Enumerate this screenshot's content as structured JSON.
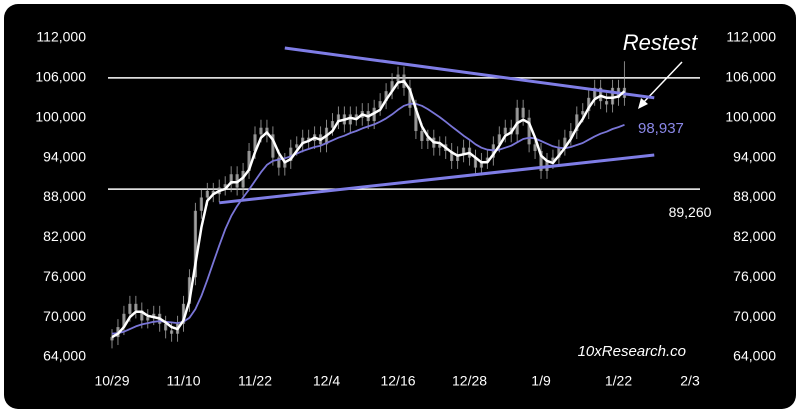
{
  "chart_data": {
    "type": "candlestick",
    "categories": [
      "10/29",
      null,
      null,
      null,
      null,
      null,
      null,
      null,
      null,
      null,
      null,
      null,
      "11/10",
      null,
      null,
      null,
      null,
      null,
      null,
      null,
      null,
      null,
      null,
      null,
      "11/22",
      null,
      null,
      null,
      null,
      null,
      null,
      null,
      null,
      null,
      null,
      null,
      "12/4",
      null,
      null,
      null,
      null,
      null,
      null,
      null,
      null,
      null,
      null,
      null,
      "12/16",
      null,
      null,
      null,
      null,
      null,
      null,
      null,
      null,
      null,
      null,
      null,
      "12/28",
      null,
      null,
      null,
      null,
      null,
      null,
      null,
      null,
      null,
      null,
      null,
      "1/9",
      null,
      null,
      null,
      null,
      null,
      null,
      null,
      null,
      null,
      null,
      null,
      null,
      "1/22",
      null,
      null,
      null,
      null,
      null,
      null,
      null,
      null,
      null,
      null,
      null,
      "2/3"
    ],
    "candles": {
      "color": "#b0b0b0",
      "open": [
        66500,
        67000,
        68500,
        70500,
        72000,
        71000,
        69500,
        70000,
        70500,
        69000,
        68000,
        67500,
        69000,
        72000,
        76000,
        86000,
        88000,
        89000,
        88500,
        89500,
        90000,
        91500,
        89500,
        92000,
        95000,
        97500,
        98500,
        97500,
        94000,
        92500,
        93500,
        95500,
        96000,
        97000,
        96500,
        97500,
        96000,
        98500,
        99500,
        100500,
        99000,
        100500,
        100000,
        101000,
        99500,
        101500,
        102500,
        104000,
        105500,
        106500,
        104500,
        101500,
        98000,
        96500,
        97000,
        95500,
        96000,
        95000,
        93500,
        94500,
        95500,
        94000,
        92500,
        93500,
        94000,
        96000,
        97500,
        98500,
        97500,
        101500,
        100000,
        96000,
        95000,
        92000,
        93500,
        94000,
        95500,
        97000,
        98000,
        100500,
        101000,
        103000,
        104500,
        102500,
        102000,
        104500,
        103000,
        null,
        null,
        null,
        null,
        null,
        null,
        null,
        null,
        null,
        null,
        null
      ],
      "high": [
        68200,
        69700,
        71700,
        73200,
        73200,
        72200,
        71200,
        71700,
        71700,
        70200,
        69200,
        70200,
        73200,
        77200,
        87200,
        89200,
        90200,
        90200,
        90700,
        91200,
        92700,
        92700,
        93200,
        96200,
        98700,
        99700,
        99700,
        98700,
        95200,
        94700,
        96700,
        97200,
        98200,
        98200,
        98700,
        98700,
        99700,
        100700,
        101700,
        101700,
        101700,
        101700,
        102200,
        102200,
        102700,
        103700,
        105200,
        106700,
        107700,
        107700,
        105700,
        102700,
        99200,
        98200,
        98200,
        97200,
        97200,
        96200,
        95700,
        96700,
        96700,
        95200,
        94700,
        95200,
        97200,
        98700,
        99700,
        99700,
        102700,
        102700,
        101200,
        97200,
        96200,
        94700,
        95200,
        96700,
        98200,
        99200,
        101700,
        102200,
        104200,
        105700,
        105700,
        103700,
        105700,
        105700,
        108500,
        null,
        null,
        null,
        null,
        null,
        null,
        null,
        null,
        null,
        null,
        null
      ],
      "low": [
        65300,
        65800,
        67300,
        69300,
        69800,
        68300,
        68300,
        68800,
        67800,
        66800,
        66300,
        66300,
        67800,
        70800,
        74800,
        84800,
        86800,
        87300,
        87300,
        88300,
        88800,
        88300,
        88300,
        90800,
        93800,
        96300,
        96300,
        92800,
        91300,
        91300,
        92300,
        94300,
        94800,
        95300,
        95300,
        94800,
        94800,
        97300,
        98300,
        97800,
        97800,
        98800,
        98800,
        98300,
        98300,
        100300,
        101300,
        102800,
        104300,
        103300,
        100300,
        96800,
        95300,
        95300,
        94300,
        94300,
        93800,
        92300,
        92300,
        93300,
        92800,
        91300,
        91300,
        92300,
        92800,
        94800,
        96300,
        96300,
        96300,
        98800,
        94800,
        93800,
        90800,
        90800,
        92300,
        92800,
        94300,
        95800,
        96800,
        99300,
        99800,
        101800,
        101300,
        100800,
        100800,
        101800,
        101800,
        null,
        null,
        null,
        null,
        null,
        null,
        null,
        null,
        null,
        null,
        null
      ],
      "close": [
        67000,
        68500,
        70500,
        72000,
        71000,
        69500,
        70000,
        70500,
        69000,
        68000,
        67500,
        69000,
        72000,
        76000,
        86000,
        88000,
        89000,
        88500,
        89500,
        90000,
        91500,
        89500,
        92000,
        95000,
        97500,
        98500,
        97500,
        94000,
        92500,
        93500,
        95500,
        96000,
        97000,
        96500,
        97500,
        96000,
        98500,
        99500,
        100500,
        99000,
        100500,
        100000,
        101000,
        99500,
        101500,
        102500,
        104000,
        105500,
        106500,
        104500,
        101500,
        98000,
        96500,
        97000,
        95500,
        96000,
        95000,
        93500,
        94500,
        95500,
        94000,
        92500,
        93500,
        94000,
        96000,
        97500,
        98500,
        97500,
        101500,
        100000,
        96000,
        95000,
        92000,
        93500,
        94000,
        95500,
        97000,
        98000,
        100500,
        101000,
        103000,
        104500,
        102500,
        102000,
        104500,
        103000,
        104500,
        null,
        null,
        null,
        null,
        null,
        null,
        null,
        null,
        null,
        null,
        null
      ]
    },
    "series": [
      {
        "color": "#ffffff",
        "values": [
          67000,
          67500,
          68500,
          70000,
          70800,
          70800,
          70200,
          70000,
          69800,
          69200,
          68500,
          68200,
          69500,
          72500,
          78000,
          83500,
          87500,
          88500,
          89000,
          89300,
          90300,
          90300,
          91000,
          92200,
          94800,
          97000,
          97800,
          96700,
          94700,
          93300,
          93800,
          95000,
          96200,
          96500,
          97000,
          96700,
          97300,
          98000,
          99500,
          99700,
          100000,
          99800,
          100500,
          100200,
          100700,
          101200,
          102700,
          104000,
          105300,
          105500,
          104200,
          101300,
          98700,
          97200,
          96300,
          96200,
          95500,
          94800,
          94300,
          94500,
          94700,
          94000,
          93300,
          93300,
          94500,
          95800,
          97300,
          97800,
          99200,
          99700,
          99200,
          97000,
          94300,
          93500,
          93200,
          94300,
          95500,
          96800,
          98500,
          99800,
          101500,
          102800,
          103300,
          103000,
          103000,
          103200,
          104000,
          null,
          null,
          null,
          null,
          null,
          null,
          null,
          null,
          null,
          null,
          null
        ]
      },
      {
        "color": "#7a76d8",
        "values": [
          67500,
          67600,
          67800,
          68200,
          68600,
          68900,
          69100,
          69300,
          69400,
          69300,
          69200,
          69100,
          69300,
          69900,
          71200,
          73200,
          75600,
          78200,
          80800,
          83200,
          85200,
          86700,
          88000,
          89200,
          90500,
          91800,
          92900,
          93500,
          93700,
          93900,
          94200,
          94600,
          95000,
          95300,
          95600,
          95800,
          96200,
          96600,
          97000,
          97300,
          97700,
          98000,
          98400,
          98700,
          99000,
          99400,
          99900,
          100500,
          101200,
          101800,
          102100,
          102100,
          101800,
          101300,
          100700,
          100100,
          99400,
          98700,
          98000,
          97300,
          96700,
          96000,
          95500,
          95200,
          95100,
          95200,
          95500,
          95800,
          96300,
          96800,
          97000,
          96900,
          96500,
          96100,
          95700,
          95500,
          95400,
          95600,
          95900,
          96200,
          96700,
          97200,
          97600,
          97900,
          98300,
          98600,
          98937,
          null,
          null,
          null,
          null,
          null,
          null,
          null,
          null,
          null,
          null,
          null
        ]
      }
    ],
    "trendlines": [
      {
        "color": "#7f7de6",
        "x": [
          29,
          91
        ],
        "y": [
          110500,
          103000
        ]
      },
      {
        "color": "#7f7de6",
        "x": [
          18,
          91
        ],
        "y": [
          87200,
          94400
        ]
      }
    ],
    "hlines": [
      {
        "value": 106000,
        "color": "#ffffff"
      },
      {
        "value": 89260,
        "color": "#ffffff",
        "label": "89,260"
      }
    ],
    "annotations": [
      {
        "text": "Restest"
      },
      {
        "text": "98,937",
        "value": 98937,
        "color": "#8b88e8"
      },
      {
        "text": "10xResearch.co"
      }
    ],
    "ylim": [
      64000,
      112000
    ],
    "yticks": [
      {
        "value": 64000,
        "label": "64,000"
      },
      {
        "value": 70000,
        "label": "70,000"
      },
      {
        "value": 76000,
        "label": "76,000"
      },
      {
        "value": 82000,
        "label": "82,000"
      },
      {
        "value": 88000,
        "label": "88,000"
      },
      {
        "value": 94000,
        "label": "94,000"
      },
      {
        "value": 100000,
        "label": "100,000"
      },
      {
        "value": 106000,
        "label": "106,000"
      },
      {
        "value": 112000,
        "label": "112,000"
      }
    ]
  }
}
